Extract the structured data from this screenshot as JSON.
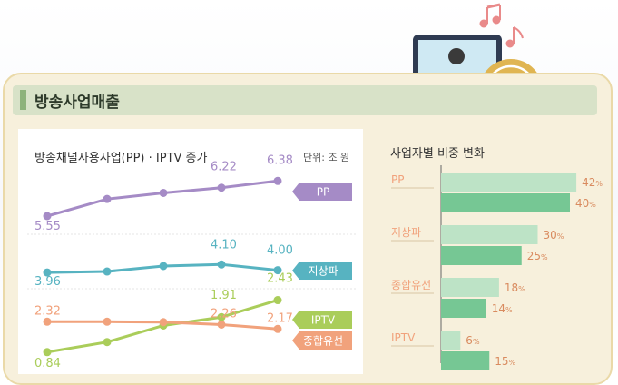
{
  "header": {
    "title": "방송사업매출"
  },
  "left_chart": {
    "subtitle": "방송채널사용사업(PP) · IPTV 증가",
    "unit": "단위: 조 원"
  },
  "right_chart": {
    "subtitle": "사업자별 비중 변화"
  },
  "colors": {
    "pp": "#a58bc6",
    "terrestrial": "#57b3c1",
    "iptv": "#aacd5a",
    "cable": "#f1a27c",
    "bar_light": "#bde3c6",
    "bar_dark": "#76c794",
    "panel": "#f7f0dc"
  },
  "chart_data": [
    {
      "type": "line",
      "title": "방송채널사용사업(PP) · IPTV 증가",
      "unit": "단위: 조 원",
      "series": [
        {
          "name": "PP",
          "values": [
            5.55,
            null,
            null,
            6.22,
            6.38
          ]
        },
        {
          "name": "지상파",
          "values": [
            3.96,
            null,
            null,
            4.1,
            4.0
          ]
        },
        {
          "name": "IPTV",
          "values": [
            0.84,
            null,
            null,
            1.91,
            2.43
          ]
        },
        {
          "name": "종합유선",
          "values": [
            2.32,
            null,
            null,
            2.26,
            2.17
          ]
        }
      ]
    },
    {
      "type": "bar",
      "title": "사업자별 비중 변화",
      "categories": [
        "PP",
        "지상파",
        "종합유선",
        "IPTV"
      ],
      "series": [
        {
          "values": [
            42,
            30,
            18,
            6
          ]
        },
        {
          "values": [
            40,
            25,
            14,
            15
          ]
        }
      ]
    }
  ]
}
